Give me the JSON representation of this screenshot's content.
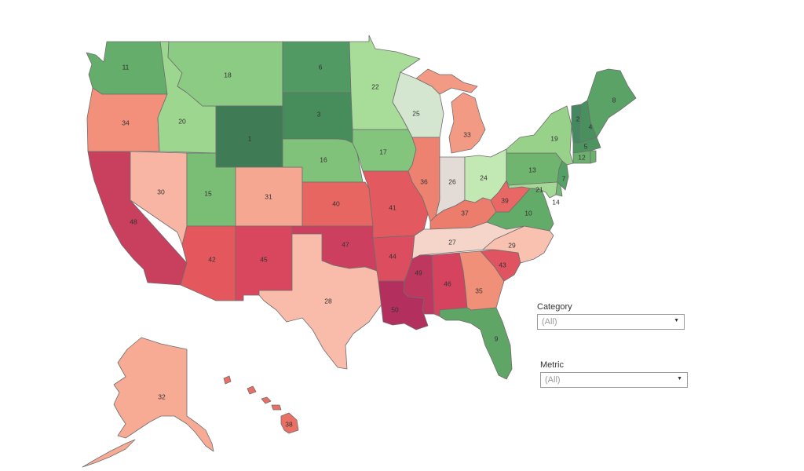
{
  "map": {
    "states": [
      {
        "abbr": "WA",
        "rank": "11",
        "color": "#64ad6a"
      },
      {
        "abbr": "OR",
        "rank": "34",
        "color": "#f2907b"
      },
      {
        "abbr": "CA",
        "rank": "48",
        "color": "#c93f5e"
      },
      {
        "abbr": "ID",
        "rank": "20",
        "color": "#9cd68f"
      },
      {
        "abbr": "NV",
        "rank": "30",
        "color": "#f8b5a3"
      },
      {
        "abbr": "MT",
        "rank": "18",
        "color": "#8ccb84"
      },
      {
        "abbr": "WY",
        "rank": "1",
        "color": "#3f7c55"
      },
      {
        "abbr": "UT",
        "rank": "15",
        "color": "#7abd74"
      },
      {
        "abbr": "AZ",
        "rank": "42",
        "color": "#e4575c"
      },
      {
        "abbr": "CO",
        "rank": "31",
        "color": "#f6a791"
      },
      {
        "abbr": "NM",
        "rank": "45",
        "color": "#d9475e"
      },
      {
        "abbr": "ND",
        "rank": "6",
        "color": "#529a64"
      },
      {
        "abbr": "SD",
        "rank": "3",
        "color": "#478d5c"
      },
      {
        "abbr": "NE",
        "rank": "16",
        "color": "#80c279"
      },
      {
        "abbr": "KS",
        "rank": "40",
        "color": "#e86662"
      },
      {
        "abbr": "OK",
        "rank": "47",
        "color": "#cd3f5f"
      },
      {
        "abbr": "TX",
        "rank": "28",
        "color": "#f9bcab"
      },
      {
        "abbr": "MN",
        "rank": "22",
        "color": "#a8dc99"
      },
      {
        "abbr": "IA",
        "rank": "17",
        "color": "#83c57c"
      },
      {
        "abbr": "MO",
        "rank": "41",
        "color": "#e25a5f"
      },
      {
        "abbr": "AR",
        "rank": "44",
        "color": "#dc4d5f"
      },
      {
        "abbr": "LA",
        "rank": "50",
        "color": "#b32f5e"
      },
      {
        "abbr": "WI",
        "rank": "25",
        "color": "#d4e6cf"
      },
      {
        "abbr": "IL",
        "rank": "36",
        "color": "#ee8270"
      },
      {
        "abbr": "MI",
        "rank": "33",
        "color": "#f39a85"
      },
      {
        "abbr": "IN",
        "rank": "26",
        "color": "#e3dcd6"
      },
      {
        "abbr": "OH",
        "rank": "24",
        "color": "#c2e8b3"
      },
      {
        "abbr": "KY",
        "rank": "37",
        "color": "#ec7d6c"
      },
      {
        "abbr": "TN",
        "rank": "27",
        "color": "#f5d5c9"
      },
      {
        "abbr": "MS",
        "rank": "49",
        "color": "#be375e"
      },
      {
        "abbr": "AL",
        "rank": "46",
        "color": "#d5435f"
      },
      {
        "abbr": "GA",
        "rank": "35",
        "color": "#f19078"
      },
      {
        "abbr": "FL",
        "rank": "9",
        "color": "#5ea566"
      },
      {
        "abbr": "SC",
        "rank": "43",
        "color": "#df5460"
      },
      {
        "abbr": "NC",
        "rank": "29",
        "color": "#f9c1b0"
      },
      {
        "abbr": "VA",
        "rank": "10",
        "color": "#63ab69"
      },
      {
        "abbr": "WV",
        "rank": "39",
        "color": "#e96764"
      },
      {
        "abbr": "PA",
        "rank": "13",
        "color": "#6fb56f"
      },
      {
        "abbr": "NY",
        "rank": "19",
        "color": "#97d18a"
      },
      {
        "abbr": "MD",
        "rank": "21",
        "color": "#a4d995"
      },
      {
        "abbr": "DE",
        "rank": "14",
        "color": "#73b872"
      },
      {
        "abbr": "NJ",
        "rank": "7",
        "color": "#55a067"
      },
      {
        "abbr": "VT",
        "rank": "2",
        "color": "#438860"
      },
      {
        "abbr": "NH",
        "rank": "4",
        "color": "#4a905e"
      },
      {
        "abbr": "ME",
        "rank": "8",
        "color": "#5aa266"
      },
      {
        "abbr": "MA",
        "rank": "5",
        "color": "#4e9461"
      },
      {
        "abbr": "CT",
        "rank": "12",
        "color": "#6bb16d"
      },
      {
        "abbr": "RI",
        "rank": "",
        "color": "#6bb16d"
      },
      {
        "abbr": "AK",
        "rank": "32",
        "color": "#f7ab95"
      },
      {
        "abbr": "HI",
        "rank": "38",
        "color": "#ea7065"
      }
    ]
  },
  "filters": {
    "category": {
      "label": "Category",
      "value": "(All)"
    },
    "metric": {
      "label": "Metric",
      "value": "(All)"
    }
  }
}
